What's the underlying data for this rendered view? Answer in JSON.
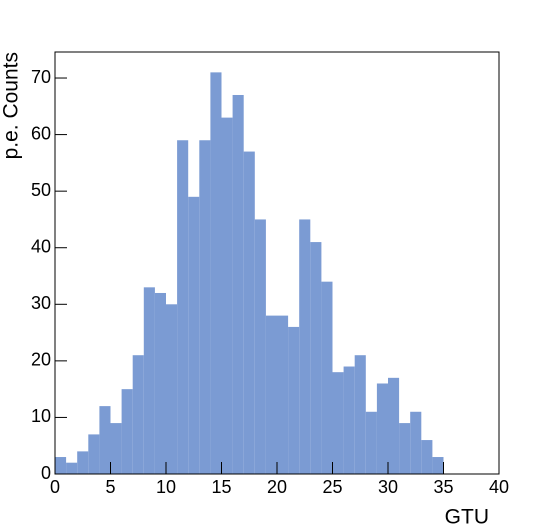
{
  "chart_data": {
    "type": "histogram",
    "x_label": "GTU",
    "y_label": "p.e. Counts",
    "bins": [
      0,
      1,
      2,
      3,
      4,
      5,
      6,
      7,
      8,
      9,
      10,
      11,
      12,
      13,
      14,
      15,
      16,
      17,
      18,
      19,
      20,
      21,
      22,
      23,
      24,
      25,
      26,
      27,
      28,
      29,
      30,
      31,
      32,
      33,
      34,
      35
    ],
    "values": [
      3,
      2,
      4,
      7,
      12,
      9,
      15,
      21,
      33,
      32,
      30,
      59,
      49,
      59,
      71,
      63,
      67,
      57,
      45,
      28,
      28,
      26,
      45,
      41,
      34,
      18,
      19,
      21,
      11,
      16,
      17,
      9,
      11,
      6,
      3
    ],
    "color": "#7b9bd3",
    "xlim": [
      0,
      40
    ],
    "xticks": [
      0,
      5,
      10,
      15,
      20,
      25,
      30,
      35,
      40
    ],
    "ylim": [
      0,
      74.6
    ],
    "yticks": [
      0,
      10,
      20,
      30,
      40,
      50,
      60,
      70
    ],
    "grid": false
  }
}
